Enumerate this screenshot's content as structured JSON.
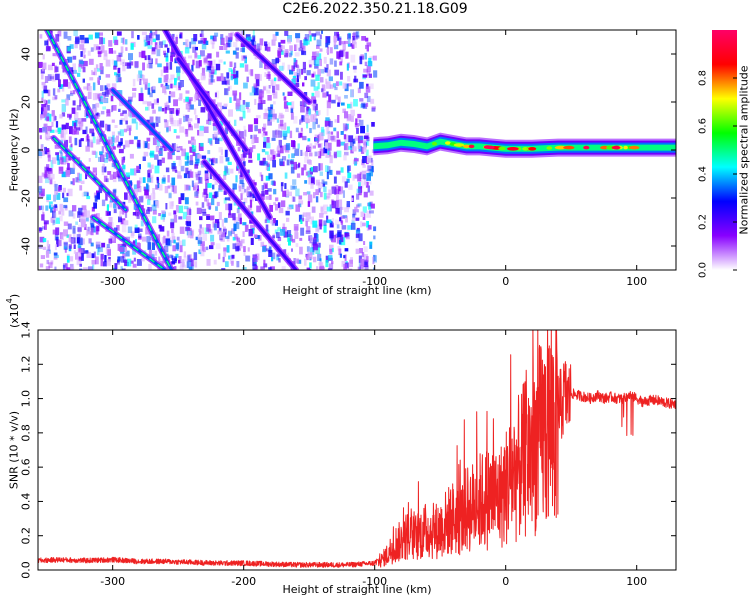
{
  "title": "C2E6.2022.350.21.18.G09",
  "chart_data": [
    {
      "type": "heatmap",
      "xlabel": "Height of straight line (km)",
      "ylabel": "Frequency (Hz)",
      "xlim": [
        -357,
        130
      ],
      "ylim": [
        -50,
        50
      ],
      "xticks": [
        -300,
        -200,
        -100,
        0,
        100
      ],
      "xtick_labels": [
        "-300",
        "-200",
        "-100",
        "0",
        "100"
      ],
      "yticks": [
        -40,
        -20,
        0,
        20,
        40
      ],
      "ytick_labels": [
        "-40",
        "-20",
        "0",
        "20",
        "40"
      ],
      "colorbar": {
        "label": "Normalized spectral amplitude",
        "range": [
          0,
          1
        ],
        "ticks": [
          0,
          0.2,
          0.4,
          0.6,
          0.8
        ],
        "tick_labels": [
          "0.0",
          "0.2",
          "0.4",
          "0.6",
          "0.8"
        ],
        "colors": [
          "#ffffff",
          "#8800ff",
          "#0000ff",
          "#00ffff",
          "#00ff00",
          "#ffff00",
          "#ff0000",
          "#ff0066"
        ]
      },
      "noise_region_x": [
        -357,
        -101
      ],
      "signal_line": {
        "x": [
          -101,
          -90,
          -80,
          -70,
          -60,
          -50,
          -40,
          -30,
          -20,
          -10,
          0,
          20,
          40,
          60,
          80,
          100,
          130
        ],
        "frequency": [
          1.5,
          2.0,
          3.0,
          2.5,
          1.5,
          3.5,
          2.5,
          1.5,
          1.5,
          1.0,
          0.5,
          0.5,
          1.0,
          1.0,
          1.0,
          1.0,
          1.0
        ]
      },
      "diagonal_traces": [
        {
          "x": [
            -350,
            -255
          ],
          "frequency": [
            50,
            -50
          ]
        },
        {
          "x": [
            -345,
            -290
          ],
          "frequency": [
            5,
            -25
          ]
        },
        {
          "x": [
            -315,
            -260
          ],
          "frequency": [
            -28,
            -50
          ]
        },
        {
          "x": [
            -300,
            -255
          ],
          "frequency": [
            25,
            0
          ]
        },
        {
          "x": [
            -260,
            -180
          ],
          "frequency": [
            50,
            -28
          ]
        },
        {
          "x": [
            -250,
            -198
          ],
          "frequency": [
            38,
            0
          ]
        },
        {
          "x": [
            -230,
            -160
          ],
          "frequency": [
            -5,
            -50
          ]
        },
        {
          "x": [
            -205,
            -150
          ],
          "frequency": [
            48,
            20
          ]
        }
      ]
    },
    {
      "type": "line",
      "xlabel": "Height of straight line (km)",
      "ylabel": "SNR (10 * v/v)",
      "y_multiplier": "(x10",
      "y_multiplier_exp": "4",
      "y_multiplier_close": ")",
      "xlim": [
        -357,
        130
      ],
      "ylim": [
        0,
        1.4
      ],
      "xticks": [
        -300,
        -200,
        -100,
        0,
        100
      ],
      "xtick_labels": [
        "-300",
        "-200",
        "-100",
        "0",
        "100"
      ],
      "yticks": [
        0,
        0.2,
        0.4,
        0.6,
        0.8,
        1.0,
        1.2,
        1.4
      ],
      "ytick_labels": [
        "0.0",
        "0.2",
        "0.4",
        "0.6",
        "0.8",
        "1.0",
        "1.2",
        "1.4"
      ],
      "series": [
        {
          "color": "#ee2222",
          "x": [
            -357,
            -340,
            -320,
            -300,
            -280,
            -260,
            -240,
            -220,
            -200,
            -180,
            -160,
            -140,
            -120,
            -110,
            -100,
            -95,
            -90,
            -85,
            -80,
            -75,
            -70,
            -65,
            -60,
            -55,
            -50,
            -45,
            -40,
            -35,
            -30,
            -25,
            -20,
            -15,
            -10,
            -5,
            0,
            5,
            10,
            15,
            20,
            25,
            30,
            35,
            38,
            40,
            42,
            45,
            48,
            50,
            55,
            60,
            65,
            70,
            75,
            80,
            85,
            90,
            95,
            100,
            105,
            110,
            115,
            120,
            125,
            130
          ],
          "y": [
            0.055,
            0.06,
            0.055,
            0.06,
            0.05,
            0.05,
            0.045,
            0.04,
            0.04,
            0.035,
            0.03,
            0.03,
            0.03,
            0.035,
            0.04,
            0.06,
            0.1,
            0.16,
            0.18,
            0.22,
            0.2,
            0.23,
            0.25,
            0.24,
            0.26,
            0.3,
            0.33,
            0.3,
            0.38,
            0.4,
            0.43,
            0.45,
            0.46,
            0.45,
            0.52,
            0.6,
            0.64,
            0.7,
            0.76,
            0.82,
            0.88,
            0.92,
            0.96,
            1.0,
            0.98,
            1.05,
            1.02,
            1.03,
            1.02,
            1.01,
            1.0,
            1.02,
            1.0,
            1.01,
            1.0,
            1.0,
            1.02,
            1.0,
            0.98,
            0.99,
            0.99,
            0.98,
            0.97,
            0.97
          ]
        }
      ]
    }
  ]
}
